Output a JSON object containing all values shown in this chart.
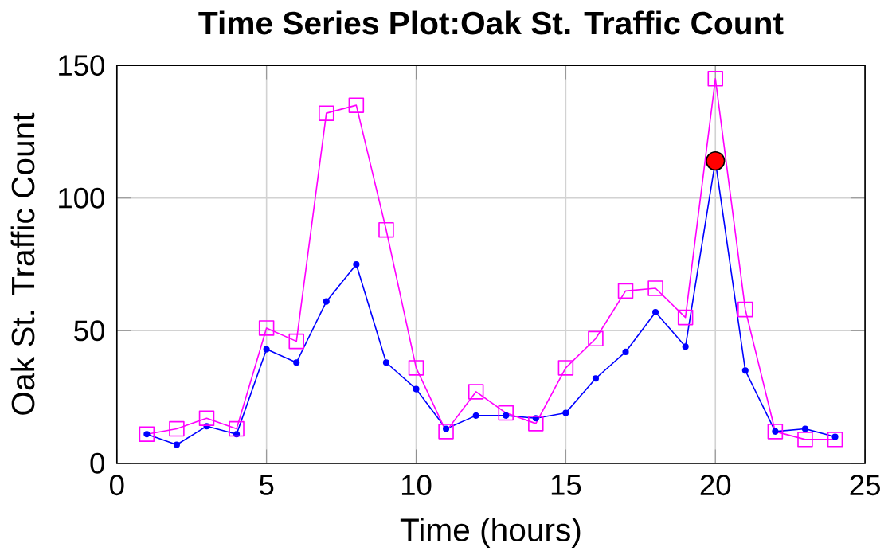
{
  "chart_data": {
    "type": "line",
    "title": "Time Series Plot:Oak St. Traffic Count",
    "xlabel": "Time (hours)",
    "ylabel": "Oak St. Traffic Count",
    "x": [
      1,
      2,
      3,
      4,
      5,
      6,
      7,
      8,
      9,
      10,
      11,
      12,
      13,
      14,
      15,
      16,
      17,
      18,
      19,
      20,
      21,
      22,
      23,
      24
    ],
    "series": [
      {
        "color": "#0000ff",
        "marker": "circle",
        "values": [
          11,
          7,
          14,
          11,
          43,
          38,
          61,
          75,
          38,
          28,
          13,
          18,
          18,
          17,
          19,
          32,
          42,
          57,
          44,
          114,
          35,
          12,
          13,
          10
        ]
      },
      {
        "color": "#ff00ff",
        "marker": "square",
        "values": [
          11,
          13,
          17,
          13,
          51,
          46,
          132,
          135,
          88,
          36,
          12,
          27,
          19,
          15,
          36,
          47,
          65,
          66,
          55,
          145,
          58,
          12,
          9,
          9
        ]
      },
      {
        "type": "scatter",
        "color": "#ff0000",
        "marker": "circle",
        "x": [
          20
        ],
        "values": [
          114
        ]
      }
    ],
    "xlim": [
      0,
      25
    ],
    "ylim": [
      0,
      150
    ],
    "xticks": [
      0,
      5,
      10,
      15,
      20,
      25
    ],
    "yticks": [
      0,
      50,
      100,
      150
    ],
    "grid": true
  }
}
